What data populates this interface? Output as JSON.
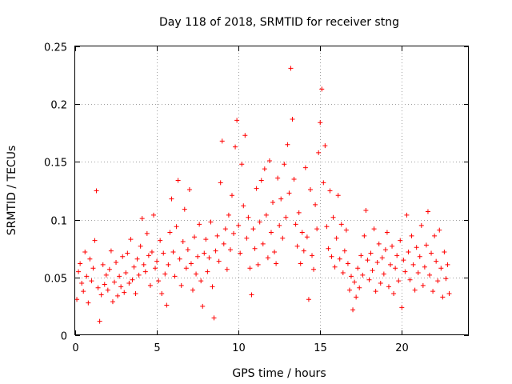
{
  "chart_data": {
    "type": "scatter",
    "title": "Day 118 of 2018, SRMTID for receiver stng",
    "xlabel": "GPS time / hours",
    "ylabel": "SRMTID / TECUs",
    "xlim": [
      0,
      24.1
    ],
    "ylim": [
      0,
      0.25
    ],
    "x_ticks": [
      0,
      5,
      10,
      15,
      20
    ],
    "x_tick_labels": [
      "0",
      "5",
      "10",
      "15",
      "20"
    ],
    "y_ticks": [
      0,
      0.05,
      0.1,
      0.15,
      0.2,
      0.25
    ],
    "y_tick_labels": [
      "0",
      "0.05",
      "0.1",
      "0.15",
      "0.2",
      "0.25"
    ],
    "grid": true,
    "marker": "plus",
    "color": "#ff0000",
    "series": [
      {
        "name": "SRMTID",
        "points": [
          [
            0.1,
            0.031
          ],
          [
            0.2,
            0.055
          ],
          [
            0.3,
            0.062
          ],
          [
            0.4,
            0.045
          ],
          [
            0.5,
            0.038
          ],
          [
            0.6,
            0.072
          ],
          [
            0.7,
            0.051
          ],
          [
            0.8,
            0.028
          ],
          [
            0.9,
            0.066
          ],
          [
            1.0,
            0.047
          ],
          [
            1.1,
            0.058
          ],
          [
            1.2,
            0.082
          ],
          [
            1.3,
            0.125
          ],
          [
            1.4,
            0.041
          ],
          [
            1.5,
            0.012
          ],
          [
            1.6,
            0.035
          ],
          [
            1.7,
            0.061
          ],
          [
            1.8,
            0.044
          ],
          [
            1.9,
            0.052
          ],
          [
            2.0,
            0.039
          ],
          [
            2.1,
            0.057
          ],
          [
            2.2,
            0.073
          ],
          [
            2.3,
            0.029
          ],
          [
            2.4,
            0.046
          ],
          [
            2.5,
            0.063
          ],
          [
            2.6,
            0.034
          ],
          [
            2.7,
            0.051
          ],
          [
            2.8,
            0.042
          ],
          [
            2.9,
            0.068
          ],
          [
            3.0,
            0.037
          ],
          [
            3.1,
            0.054
          ],
          [
            3.2,
            0.071
          ],
          [
            3.3,
            0.045
          ],
          [
            3.4,
            0.083
          ],
          [
            3.5,
            0.048
          ],
          [
            3.6,
            0.059
          ],
          [
            3.7,
            0.036
          ],
          [
            3.8,
            0.066
          ],
          [
            3.9,
            0.052
          ],
          [
            4.0,
            0.077
          ],
          [
            4.1,
            0.101
          ],
          [
            4.2,
            0.061
          ],
          [
            4.3,
            0.055
          ],
          [
            4.4,
            0.088
          ],
          [
            4.5,
            0.069
          ],
          [
            4.6,
            0.043
          ],
          [
            4.7,
            0.072
          ],
          [
            4.8,
            0.104
          ],
          [
            4.9,
            0.058
          ],
          [
            5.0,
            0.064
          ],
          [
            5.1,
            0.047
          ],
          [
            5.2,
            0.082
          ],
          [
            5.3,
            0.036
          ],
          [
            5.4,
            0.071
          ],
          [
            5.5,
            0.053
          ],
          [
            5.6,
            0.026
          ],
          [
            5.7,
            0.061
          ],
          [
            5.8,
            0.089
          ],
          [
            5.9,
            0.118
          ],
          [
            6.0,
            0.072
          ],
          [
            6.1,
            0.051
          ],
          [
            6.2,
            0.094
          ],
          [
            6.3,
            0.134
          ],
          [
            6.4,
            0.066
          ],
          [
            6.5,
            0.043
          ],
          [
            6.6,
            0.081
          ],
          [
            6.7,
            0.109
          ],
          [
            6.8,
            0.058
          ],
          [
            6.9,
            0.074
          ],
          [
            7.0,
            0.126
          ],
          [
            7.1,
            0.062
          ],
          [
            7.2,
            0.039
          ],
          [
            7.3,
            0.085
          ],
          [
            7.4,
            0.053
          ],
          [
            7.5,
            0.068
          ],
          [
            7.6,
            0.096
          ],
          [
            7.7,
            0.047
          ],
          [
            7.8,
            0.025
          ],
          [
            7.9,
            0.071
          ],
          [
            8.0,
            0.083
          ],
          [
            8.1,
            0.055
          ],
          [
            8.2,
            0.067
          ],
          [
            8.3,
            0.098
          ],
          [
            8.4,
            0.042
          ],
          [
            8.5,
            0.015
          ],
          [
            8.6,
            0.073
          ],
          [
            8.7,
            0.086
          ],
          [
            8.8,
            0.064
          ],
          [
            8.9,
            0.132
          ],
          [
            9.0,
            0.168
          ],
          [
            9.1,
            0.079
          ],
          [
            9.2,
            0.092
          ],
          [
            9.3,
            0.057
          ],
          [
            9.4,
            0.104
          ],
          [
            9.5,
            0.074
          ],
          [
            9.6,
            0.121
          ],
          [
            9.7,
            0.088
          ],
          [
            9.8,
            0.163
          ],
          [
            9.9,
            0.186
          ],
          [
            10.0,
            0.095
          ],
          [
            10.1,
            0.071
          ],
          [
            10.2,
            0.148
          ],
          [
            10.3,
            0.112
          ],
          [
            10.4,
            0.173
          ],
          [
            10.5,
            0.084
          ],
          [
            10.6,
            0.102
          ],
          [
            10.7,
            0.058
          ],
          [
            10.8,
            0.035
          ],
          [
            10.9,
            0.092
          ],
          [
            11.0,
            0.075
          ],
          [
            11.1,
            0.127
          ],
          [
            11.2,
            0.061
          ],
          [
            11.3,
            0.098
          ],
          [
            11.4,
            0.134
          ],
          [
            11.5,
            0.079
          ],
          [
            11.6,
            0.144
          ],
          [
            11.7,
            0.104
          ],
          [
            11.8,
            0.067
          ],
          [
            11.9,
            0.151
          ],
          [
            12.0,
            0.089
          ],
          [
            12.1,
            0.115
          ],
          [
            12.2,
            0.072
          ],
          [
            12.3,
            0.062
          ],
          [
            12.4,
            0.136
          ],
          [
            12.5,
            0.095
          ],
          [
            12.6,
            0.118
          ],
          [
            12.7,
            0.084
          ],
          [
            12.8,
            0.148
          ],
          [
            12.9,
            0.102
          ],
          [
            13.0,
            0.165
          ],
          [
            13.1,
            0.123
          ],
          [
            13.2,
            0.231
          ],
          [
            13.3,
            0.187
          ],
          [
            13.4,
            0.135
          ],
          [
            13.5,
            0.096
          ],
          [
            13.6,
            0.077
          ],
          [
            13.7,
            0.106
          ],
          [
            13.8,
            0.062
          ],
          [
            13.9,
            0.089
          ],
          [
            14.0,
            0.073
          ],
          [
            14.1,
            0.145
          ],
          [
            14.2,
            0.085
          ],
          [
            14.3,
            0.031
          ],
          [
            14.4,
            0.126
          ],
          [
            14.5,
            0.069
          ],
          [
            14.6,
            0.057
          ],
          [
            14.7,
            0.113
          ],
          [
            14.8,
            0.092
          ],
          [
            14.9,
            0.158
          ],
          [
            15.0,
            0.184
          ],
          [
            15.1,
            0.213
          ],
          [
            15.2,
            0.132
          ],
          [
            15.3,
            0.164
          ],
          [
            15.4,
            0.094
          ],
          [
            15.5,
            0.075
          ],
          [
            15.6,
            0.125
          ],
          [
            15.7,
            0.068
          ],
          [
            15.8,
            0.102
          ],
          [
            15.9,
            0.059
          ],
          [
            16.0,
            0.084
          ],
          [
            16.1,
            0.121
          ],
          [
            16.2,
            0.066
          ],
          [
            16.3,
            0.096
          ],
          [
            16.4,
            0.054
          ],
          [
            16.5,
            0.073
          ],
          [
            16.6,
            0.091
          ],
          [
            16.7,
            0.062
          ],
          [
            16.8,
            0.039
          ],
          [
            16.9,
            0.051
          ],
          [
            17.0,
            0.022
          ],
          [
            17.1,
            0.046
          ],
          [
            17.2,
            0.033
          ],
          [
            17.3,
            0.058
          ],
          [
            17.4,
            0.041
          ],
          [
            17.5,
            0.069
          ],
          [
            17.6,
            0.052
          ],
          [
            17.7,
            0.086
          ],
          [
            17.8,
            0.108
          ],
          [
            17.9,
            0.065
          ],
          [
            18.0,
            0.048
          ],
          [
            18.1,
            0.071
          ],
          [
            18.2,
            0.056
          ],
          [
            18.3,
            0.092
          ],
          [
            18.4,
            0.038
          ],
          [
            18.5,
            0.063
          ],
          [
            18.6,
            0.079
          ],
          [
            18.7,
            0.045
          ],
          [
            18.8,
            0.067
          ],
          [
            18.9,
            0.053
          ],
          [
            19.0,
            0.074
          ],
          [
            19.1,
            0.089
          ],
          [
            19.2,
            0.042
          ],
          [
            19.3,
            0.061
          ],
          [
            19.4,
            0.077
          ],
          [
            19.5,
            0.036
          ],
          [
            19.6,
            0.058
          ],
          [
            19.7,
            0.069
          ],
          [
            19.8,
            0.047
          ],
          [
            19.9,
            0.082
          ],
          [
            20.0,
            0.024
          ],
          [
            20.1,
            0.065
          ],
          [
            20.2,
            0.055
          ],
          [
            20.3,
            0.104
          ],
          [
            20.4,
            0.072
          ],
          [
            20.5,
            0.048
          ],
          [
            20.6,
            0.086
          ],
          [
            20.7,
            0.061
          ],
          [
            20.8,
            0.039
          ],
          [
            20.9,
            0.076
          ],
          [
            21.0,
            0.054
          ],
          [
            21.1,
            0.068
          ],
          [
            21.2,
            0.095
          ],
          [
            21.3,
            0.043
          ],
          [
            21.4,
            0.059
          ],
          [
            21.5,
            0.078
          ],
          [
            21.6,
            0.107
          ],
          [
            21.7,
            0.052
          ],
          [
            21.8,
            0.071
          ],
          [
            21.9,
            0.038
          ],
          [
            22.0,
            0.086
          ],
          [
            22.1,
            0.064
          ],
          [
            22.2,
            0.047
          ],
          [
            22.3,
            0.091
          ],
          [
            22.4,
            0.058
          ],
          [
            22.5,
            0.033
          ],
          [
            22.6,
            0.072
          ],
          [
            22.7,
            0.049
          ],
          [
            22.8,
            0.061
          ],
          [
            22.9,
            0.036
          ]
        ]
      }
    ]
  }
}
